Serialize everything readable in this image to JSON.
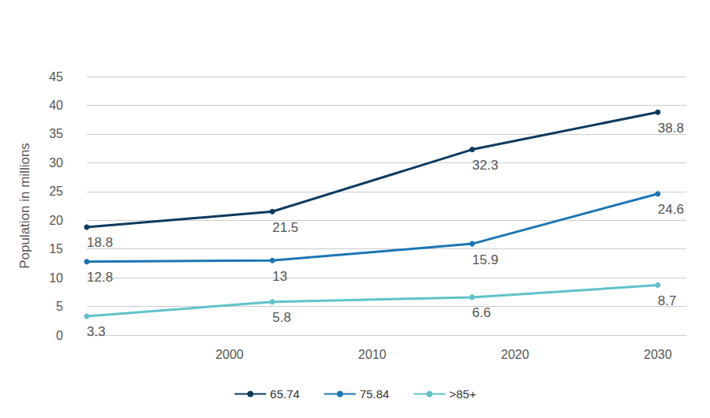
{
  "chart_data": {
    "type": "line",
    "ylabel": "Population in millions",
    "x": [
      1990,
      2003,
      2017,
      2030
    ],
    "xlim": [
      1990,
      2032
    ],
    "xticks": [
      2000,
      2010,
      2020,
      2030
    ],
    "ylim": [
      0,
      45
    ],
    "yticks": [
      0,
      5,
      10,
      15,
      20,
      25,
      30,
      35,
      40,
      45
    ],
    "grid": true,
    "legend": "bottom",
    "data_labels": true,
    "series": [
      {
        "name": "65.74",
        "color": "#0d3a5f",
        "values": [
          18.8,
          21.5,
          32.3,
          38.8
        ]
      },
      {
        "name": "75.84",
        "color": "#1b75b3",
        "values": [
          12.8,
          13,
          15.9,
          24.6
        ]
      },
      {
        "name": ">85+",
        "color": "#5ec3c9",
        "values": [
          3.3,
          5.8,
          6.6,
          8.7
        ]
      }
    ]
  }
}
